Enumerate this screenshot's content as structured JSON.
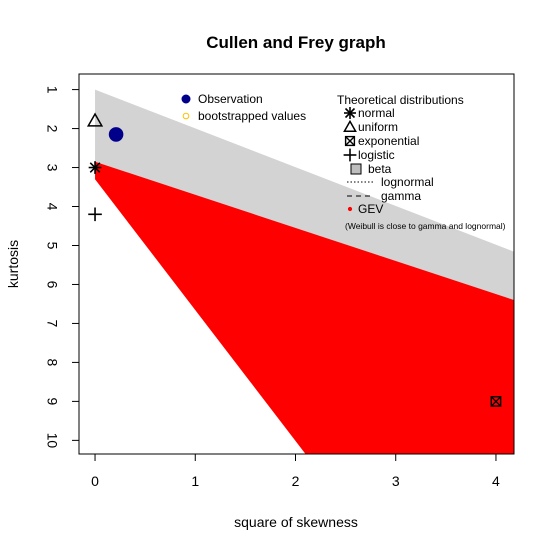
{
  "chart_data": {
    "type": "scatter",
    "title": "Cullen and Frey graph",
    "xlabel": "square of skewness",
    "ylabel": "kurtosis",
    "xlim": [
      -0.16,
      4.18
    ],
    "ylim": [
      10.35,
      0.6
    ],
    "x_ticks": [
      0,
      1,
      2,
      3,
      4
    ],
    "y_ticks": [
      1,
      2,
      3,
      4,
      5,
      6,
      7,
      8,
      9,
      10
    ],
    "grid": false,
    "legend_left": {
      "entries": [
        {
          "label": "Observation",
          "marker": "filled-circle",
          "color": "#00008B"
        },
        {
          "label": "bootstrapped values",
          "marker": "open-circle",
          "color": "#FFC000"
        }
      ]
    },
    "legend_right": {
      "title": "Theoretical distributions",
      "entries": [
        {
          "label": "normal",
          "marker": "asterisk"
        },
        {
          "label": "uniform",
          "marker": "open-triangle"
        },
        {
          "label": "exponential",
          "marker": "boxed-x"
        },
        {
          "label": "logistic",
          "marker": "plus"
        },
        {
          "label": "beta",
          "marker": "grey-square"
        },
        {
          "label": "lognormal",
          "marker": "dotted-line"
        },
        {
          "label": "gamma",
          "marker": "dashed-line"
        },
        {
          "label": "GEV",
          "marker": "red-dot"
        }
      ],
      "note": "(Weibull is close to gamma and lognormal)"
    },
    "regions": [
      {
        "name": "beta",
        "color": "#D3D3D3",
        "x": [
          0,
          0,
          4.18,
          4.18
        ],
        "y": [
          1,
          3.3,
          6.4,
          5.16
        ]
      },
      {
        "name": "GEV",
        "color": "#FF0000",
        "x": [
          0,
          0,
          2.1,
          4.18,
          4.18
        ],
        "y": [
          2.85,
          3.3,
          10.35,
          10.35,
          6.4
        ]
      }
    ],
    "points": [
      {
        "name": "Observation",
        "x": 0.21,
        "y": 2.15,
        "marker": "filled-circle",
        "color": "#00008B"
      },
      {
        "name": "normal",
        "x": 0,
        "y": 3,
        "marker": "asterisk"
      },
      {
        "name": "uniform",
        "x": 0,
        "y": 1.8,
        "marker": "open-triangle"
      },
      {
        "name": "exponential",
        "x": 4,
        "y": 9,
        "marker": "boxed-x"
      },
      {
        "name": "logistic",
        "x": 0,
        "y": 4.2,
        "marker": "plus"
      }
    ]
  }
}
